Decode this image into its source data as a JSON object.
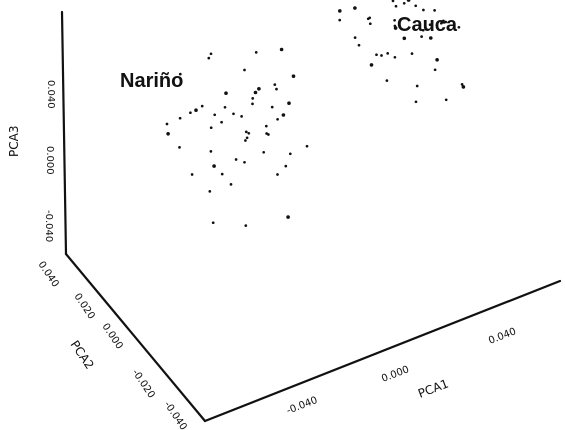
{
  "chart_data": {
    "type": "scatter",
    "title": "",
    "axes": {
      "x": {
        "label": "PCA1",
        "ticks": [
          "-0.040",
          "0.000",
          "0.040"
        ]
      },
      "y": {
        "label": "PCA2",
        "ticks": [
          "0.040",
          "0.020",
          "0.000",
          "-0.020",
          "-0.040"
        ]
      },
      "z": {
        "label": "PCA3",
        "ticks": [
          "0.040",
          "0.000",
          "-0.040"
        ]
      }
    },
    "series": [
      {
        "name": "Nariño",
        "points": [
          [
            -0.055,
            0.01,
            0.01
          ],
          [
            -0.05,
            0.018,
            0.006
          ],
          [
            -0.046,
            0.006,
            -0.012
          ],
          [
            -0.042,
            0.02,
            0.004
          ],
          [
            -0.04,
            0.002,
            -0.02
          ],
          [
            -0.038,
            0.014,
            0.012
          ],
          [
            -0.035,
            0.008,
            -0.006
          ],
          [
            -0.034,
            0.024,
            0.0
          ],
          [
            -0.032,
            -0.002,
            -0.016
          ],
          [
            -0.03,
            0.012,
            0.008
          ],
          [
            -0.028,
            0.016,
            -0.024
          ],
          [
            -0.026,
            0.004,
            0.014
          ],
          [
            -0.025,
            0.022,
            -0.01
          ],
          [
            -0.023,
            0.0,
            0.002
          ],
          [
            -0.021,
            0.01,
            -0.018
          ],
          [
            -0.02,
            0.018,
            0.01
          ],
          [
            -0.018,
            0.006,
            -0.004
          ],
          [
            -0.017,
            0.026,
            -0.014
          ],
          [
            -0.015,
            -0.004,
            0.006
          ],
          [
            -0.014,
            0.014,
            -0.026
          ],
          [
            -0.012,
            0.008,
            0.016
          ],
          [
            -0.011,
            0.02,
            -0.008
          ],
          [
            -0.01,
            0.002,
            -0.002
          ],
          [
            -0.008,
            0.016,
            0.004
          ],
          [
            -0.007,
            0.01,
            -0.02
          ],
          [
            -0.005,
            -0.002,
            0.01
          ],
          [
            -0.004,
            0.022,
            -0.006
          ],
          [
            -0.003,
            0.006,
            -0.03
          ],
          [
            -0.001,
            0.012,
            0.0
          ],
          [
            0.0,
            0.018,
            -0.016
          ],
          [
            0.002,
            0.004,
            0.008
          ],
          [
            0.003,
            0.014,
            -0.01
          ],
          [
            0.005,
            0.008,
            -0.024
          ],
          [
            0.006,
            0.02,
            0.002
          ],
          [
            0.008,
            0.0,
            -0.014
          ],
          [
            0.01,
            0.012,
            0.012
          ],
          [
            -0.044,
            -0.006,
            -0.028
          ],
          [
            -0.036,
            0.028,
            0.018
          ],
          [
            -0.029,
            -0.008,
            -0.034
          ],
          [
            -0.019,
            0.03,
            0.02
          ],
          [
            -0.009,
            -0.01,
            -0.036
          ],
          [
            0.001,
            0.026,
            0.016
          ],
          [
            -0.048,
            0.012,
            -0.002
          ],
          [
            -0.039,
            0.008,
            0.02
          ],
          [
            -0.024,
            0.016,
            -0.03
          ],
          [
            -0.013,
            0.004,
            0.022
          ],
          [
            -0.006,
            0.024,
            -0.022
          ],
          [
            0.004,
            0.01,
            -0.032
          ],
          [
            -0.033,
            0.0,
            0.024
          ],
          [
            -0.016,
            0.01,
            0.028
          ],
          [
            0.007,
            0.016,
            0.024
          ],
          [
            -0.027,
            0.02,
            0.03
          ],
          [
            -0.011,
            -0.006,
            0.03
          ],
          [
            -0.002,
            0.028,
            -0.028
          ]
        ]
      },
      {
        "name": "Cauca",
        "points": [
          [
            0.038,
            0.018,
            0.03
          ],
          [
            0.04,
            0.01,
            0.022
          ],
          [
            0.042,
            0.024,
            0.018
          ],
          [
            0.044,
            0.006,
            0.034
          ],
          [
            0.046,
            0.016,
            0.01
          ],
          [
            0.047,
            0.02,
            0.026
          ],
          [
            0.049,
            0.004,
            0.014
          ],
          [
            0.05,
            0.026,
            0.032
          ],
          [
            0.052,
            0.012,
            0.006
          ],
          [
            0.053,
            0.018,
            0.02
          ],
          [
            0.055,
            0.002,
            0.028
          ],
          [
            0.056,
            0.022,
            0.012
          ],
          [
            0.058,
            0.008,
            0.036
          ],
          [
            0.059,
            0.014,
            0.002
          ],
          [
            0.061,
            0.024,
            0.024
          ],
          [
            0.062,
            0.006,
            0.016
          ],
          [
            0.064,
            0.016,
            -0.004
          ],
          [
            0.065,
            0.01,
            0.03
          ],
          [
            0.067,
            0.02,
            0.008
          ],
          [
            0.068,
            0.002,
            0.018
          ],
          [
            0.07,
            0.014,
            0.026
          ],
          [
            0.071,
            0.026,
            0.004
          ],
          [
            0.073,
            0.008,
            0.014
          ],
          [
            0.074,
            0.018,
            -0.008
          ],
          [
            0.076,
            0.012,
            0.02
          ],
          [
            0.077,
            0.004,
            0.0
          ],
          [
            0.079,
            0.022,
            0.012
          ],
          [
            0.08,
            0.01,
            -0.012
          ],
          [
            0.082,
            0.016,
            0.006
          ],
          [
            0.083,
            0.006,
            0.016
          ],
          [
            0.085,
            0.02,
            -0.006
          ],
          [
            0.086,
            0.012,
            0.01
          ],
          [
            0.088,
            0.002,
            -0.016
          ],
          [
            0.089,
            0.018,
            0.002
          ],
          [
            0.091,
            0.008,
            0.008
          ],
          [
            0.045,
            0.028,
            0.04
          ],
          [
            0.054,
            0.0,
            0.042
          ],
          [
            0.063,
            0.026,
            0.038
          ],
          [
            0.072,
            -0.002,
            0.034
          ],
          [
            0.081,
            0.024,
            0.022
          ],
          [
            0.09,
            0.004,
            -0.02
          ],
          [
            0.057,
            0.012,
            -0.01
          ],
          [
            0.066,
            0.004,
            -0.018
          ],
          [
            0.075,
            0.016,
            -0.024
          ],
          [
            0.084,
            0.008,
            -0.028
          ],
          [
            0.048,
            0.01,
            0.004
          ],
          [
            0.06,
            0.018,
            0.032
          ],
          [
            0.069,
            0.028,
            0.028
          ]
        ]
      }
    ]
  },
  "annotations": {
    "narino": "Nariño",
    "cauca": "Cauca"
  }
}
